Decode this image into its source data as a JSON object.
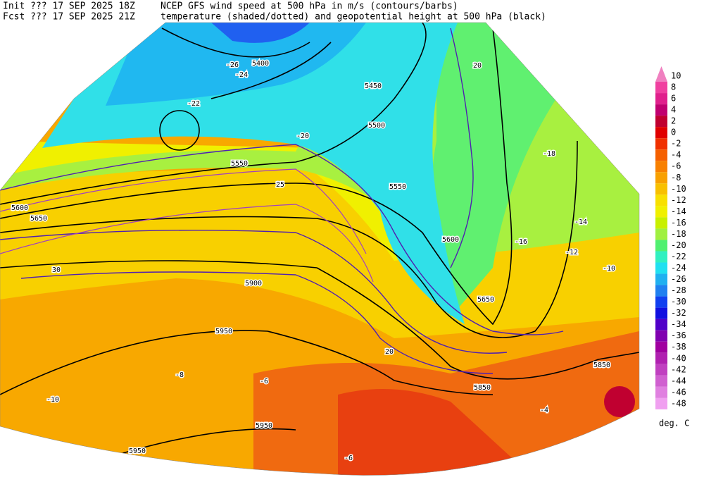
{
  "header": {
    "init": "Init  ??? 17 SEP 2025 18Z",
    "fcst": "Fcst ??? 17 SEP 2025 21Z",
    "title_line1": "NCEP GFS wind speed at 500 hPa in m/s (contours/barbs)",
    "title_line2": "temperature (shaded/dotted) and geopotential height at 500 hPa (black)"
  },
  "colorbar": {
    "levels": [
      10,
      8,
      6,
      4,
      2,
      0,
      -2,
      -4,
      -6,
      -8,
      -10,
      -12,
      -14,
      -16,
      -18,
      -20,
      -22,
      -24,
      -26,
      -28,
      -30,
      -32,
      -34,
      -36,
      -38,
      -40,
      -42,
      -44,
      -46,
      -48
    ],
    "colors": [
      "#f080c0",
      "#f040a0",
      "#e0208c",
      "#c00070",
      "#c00030",
      "#e00000",
      "#f03000",
      "#f56000",
      "#f88000",
      "#f8a000",
      "#f8c000",
      "#f8e000",
      "#f0f000",
      "#c8f000",
      "#a0f040",
      "#50f070",
      "#30f0c0",
      "#20e0f0",
      "#20b0f0",
      "#2080f0",
      "#1040f0",
      "#1010e0",
      "#5000c8",
      "#8000b0",
      "#a000a0",
      "#b020b0",
      "#c040c0",
      "#d060d0",
      "#e080e0",
      "#f0a0f0"
    ],
    "unit": "deg. C"
  },
  "map_labels": [
    "5400",
    "5450",
    "5500",
    "5550",
    "5550",
    "5600",
    "5650",
    "5600",
    "5650",
    "5900",
    "5950",
    "5950",
    "5950",
    "5850",
    "5850",
    "-26",
    "-24",
    "-22",
    "-20",
    "-18",
    "-16",
    "-14",
    "-12",
    "-10",
    "-6",
    "-6",
    "-4",
    "-8",
    "-10",
    "20",
    "25",
    "30",
    "20"
  ]
}
